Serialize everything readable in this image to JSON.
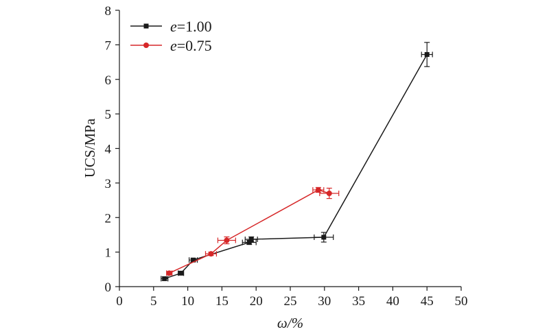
{
  "chart_data": {
    "type": "line",
    "title": "",
    "xlabel": "ω/%",
    "ylabel": "UCS/MPa",
    "xlim": [
      0,
      50
    ],
    "ylim": [
      0,
      8
    ],
    "x_ticks": [
      0,
      5,
      10,
      15,
      20,
      25,
      30,
      35,
      40,
      45,
      50
    ],
    "y_ticks": [
      0,
      1,
      2,
      3,
      4,
      5,
      6,
      7,
      8
    ],
    "grid": false,
    "legend_position": "top-left",
    "series": [
      {
        "name": "e=1.00",
        "name_parts": {
          "symbol": "e",
          "rest": "=1.00"
        },
        "color": "#1a1a1a",
        "marker": "square",
        "points": [
          {
            "x": 6.6,
            "y": 0.23,
            "xerr": 0.5,
            "yerr": 0.05
          },
          {
            "x": 9.0,
            "y": 0.39,
            "xerr": 0.4,
            "yerr": 0.05
          },
          {
            "x": 10.8,
            "y": 0.77,
            "xerr": 0.6,
            "yerr": 0.05
          },
          {
            "x": 19.0,
            "y": 1.28,
            "xerr": 1.0,
            "yerr": 0.06
          },
          {
            "x": 19.3,
            "y": 1.37,
            "xerr": 0.9,
            "yerr": 0.07
          },
          {
            "x": 29.9,
            "y": 1.43,
            "xerr": 1.4,
            "yerr": 0.14
          },
          {
            "x": 45.0,
            "y": 6.72,
            "xerr": 0.8,
            "yerr": 0.35
          }
        ]
      },
      {
        "name": "e=0.75",
        "name_parts": {
          "symbol": "e",
          "rest": "=0.75"
        },
        "color": "#d62728",
        "marker": "circle",
        "points": [
          {
            "x": 7.3,
            "y": 0.39,
            "xerr": 0.4,
            "yerr": 0.05
          },
          {
            "x": 13.4,
            "y": 0.95,
            "xerr": 0.8,
            "yerr": 0.05
          },
          {
            "x": 15.7,
            "y": 1.34,
            "xerr": 1.3,
            "yerr": 0.1
          },
          {
            "x": 29.1,
            "y": 2.8,
            "xerr": 0.8,
            "yerr": 0.07
          },
          {
            "x": 30.7,
            "y": 2.7,
            "xerr": 1.4,
            "yerr": 0.15
          }
        ]
      }
    ]
  }
}
